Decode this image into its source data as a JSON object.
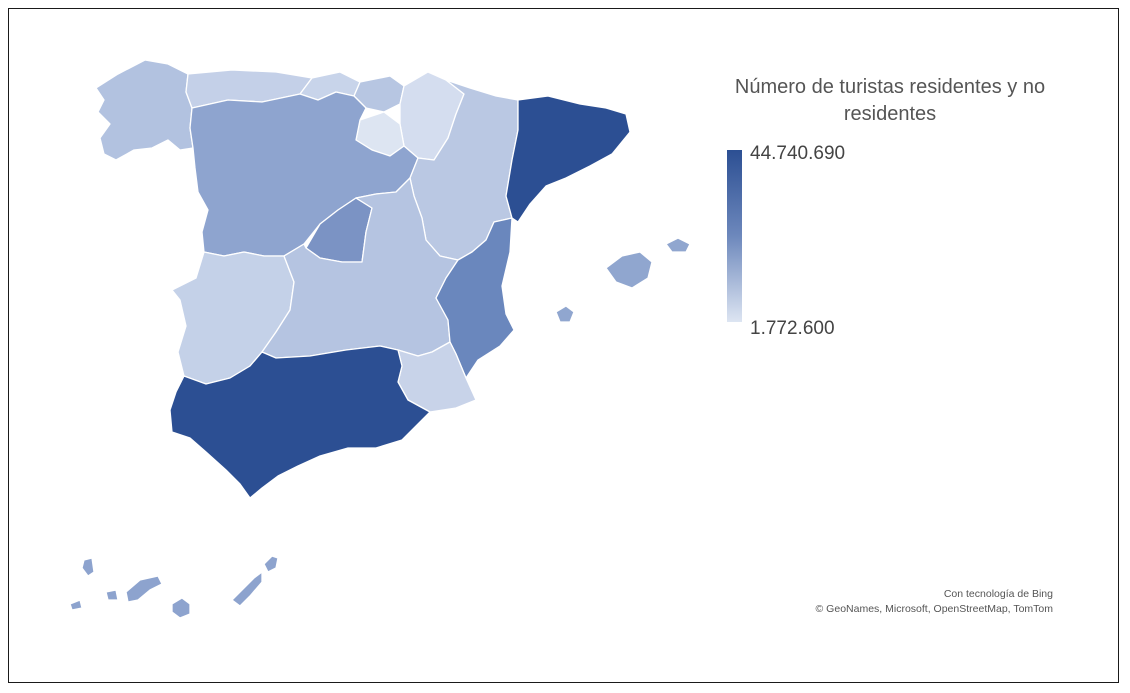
{
  "legend": {
    "title_line1": "Número de turistas residentes y no",
    "title_line2": "residentes",
    "max_label": "44.740.690",
    "min_label": "1.772.600",
    "scale_colors": {
      "high": "#2c4f93",
      "low": "#dde5f2"
    }
  },
  "attribution": {
    "line1": "Con tecnología de Bing",
    "line2": "© GeoNames, Microsoft, OpenStreetMap, TomTom"
  },
  "map": {
    "border_color": "#ffffff",
    "regions": [
      {
        "name": "Andalucía",
        "shade": "high",
        "color": "#2c4f93"
      },
      {
        "name": "Cataluña",
        "shade": "high",
        "color": "#2c4f93"
      },
      {
        "name": "Comunitat Valenciana",
        "shade": "mid-high",
        "color": "#6a87bd"
      },
      {
        "name": "Comunidad de Madrid",
        "shade": "mid-high",
        "color": "#7b93c4"
      },
      {
        "name": "Castilla y León",
        "shade": "mid",
        "color": "#8ea4cf"
      },
      {
        "name": "Canarias",
        "shade": "mid",
        "color": "#8da3ce"
      },
      {
        "name": "Illes Balears",
        "shade": "mid",
        "color": "#90a6cf"
      },
      {
        "name": "Galicia",
        "shade": "low",
        "color": "#b2c2e0"
      },
      {
        "name": "Castilla-La Mancha",
        "shade": "low",
        "color": "#b5c4e1"
      },
      {
        "name": "Aragón",
        "shade": "low",
        "color": "#bac8e3"
      },
      {
        "name": "Extremadura",
        "shade": "low",
        "color": "#c4d1e8"
      },
      {
        "name": "Región de Murcia",
        "shade": "low",
        "color": "#c8d3e9"
      },
      {
        "name": "Principado de Asturias",
        "shade": "low",
        "color": "#c4d0e8"
      },
      {
        "name": "Cantabria",
        "shade": "low",
        "color": "#c8d4ea"
      },
      {
        "name": "País Vasco",
        "shade": "low",
        "color": "#b7c6e2"
      },
      {
        "name": "Comunidad Foral de Navarra",
        "shade": "low",
        "color": "#d4ddef"
      },
      {
        "name": "La Rioja",
        "shade": "lowest",
        "color": "#dde5f2"
      }
    ]
  }
}
